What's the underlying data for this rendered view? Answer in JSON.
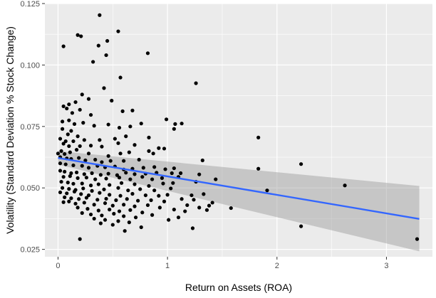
{
  "chart_data": {
    "type": "scatter",
    "xlabel": "Return on Assets (ROA)",
    "ylabel": "Volatility (Standard Deviation % Stock Change)",
    "xlim": [
      -0.12,
      3.42
    ],
    "ylim": [
      0.022,
      0.125
    ],
    "x_ticks": [
      0,
      1,
      2,
      3
    ],
    "x_tick_labels": [
      "0",
      "1",
      "2",
      "3"
    ],
    "y_ticks": [
      0.025,
      0.05,
      0.075,
      0.1,
      0.125
    ],
    "y_tick_labels": [
      "0.025",
      "0.050",
      "0.075",
      "0.100",
      "0.125"
    ],
    "grid": true,
    "legend": "none",
    "colors": {
      "panel": "#ebebeb",
      "grid": "#ffffff",
      "point": "#000000",
      "trend_line": "#3366ff",
      "ribbon": "#999999"
    },
    "trend_line": {
      "method": "linear",
      "x": [
        0,
        3.3
      ],
      "y": [
        0.0622,
        0.0374
      ],
      "ci_lower": [
        0.0595,
        0.0242
      ],
      "ci_upper": [
        0.065,
        0.0508
      ]
    },
    "points": [
      [
        0.38,
        0.1203
      ],
      [
        0.55,
        0.1137
      ],
      [
        0.18,
        0.1122
      ],
      [
        0.21,
        0.1117
      ],
      [
        0.45,
        0.1098
      ],
      [
        0.37,
        0.1079
      ],
      [
        0.05,
        0.1076
      ],
      [
        0.82,
        0.1048
      ],
      [
        0.44,
        0.104
      ],
      [
        0.32,
        0.1013
      ],
      [
        0.57,
        0.0949
      ],
      [
        1.26,
        0.0926
      ],
      [
        0.42,
        0.0906
      ],
      [
        0.22,
        0.088
      ],
      [
        0.28,
        0.0862
      ],
      [
        0.49,
        0.0855
      ],
      [
        0.16,
        0.0849
      ],
      [
        0.05,
        0.0832
      ],
      [
        0.1,
        0.084
      ],
      [
        0.08,
        0.0823
      ],
      [
        0.2,
        0.0818
      ],
      [
        0.59,
        0.0812
      ],
      [
        0.68,
        0.0815
      ],
      [
        0.13,
        0.0805
      ],
      [
        0.3,
        0.0797
      ],
      [
        0.04,
        0.077
      ],
      [
        0.1,
        0.0775
      ],
      [
        0.15,
        0.076
      ],
      [
        0.23,
        0.0765
      ],
      [
        0.33,
        0.0753
      ],
      [
        0.46,
        0.0758
      ],
      [
        0.56,
        0.0745
      ],
      [
        0.66,
        0.075
      ],
      [
        0.76,
        0.0762
      ],
      [
        0.99,
        0.0779
      ],
      [
        1.07,
        0.076
      ],
      [
        1.13,
        0.0762
      ],
      [
        1.06,
        0.074
      ],
      [
        0.04,
        0.074
      ],
      [
        0.12,
        0.0732
      ],
      [
        0.09,
        0.0718
      ],
      [
        0.18,
        0.071
      ],
      [
        0.02,
        0.07
      ],
      [
        0.07,
        0.069
      ],
      [
        0.14,
        0.069
      ],
      [
        0.24,
        0.0695
      ],
      [
        0.38,
        0.0695
      ],
      [
        0.52,
        0.07
      ],
      [
        0.62,
        0.071
      ],
      [
        0.83,
        0.0705
      ],
      [
        1.83,
        0.0705
      ],
      [
        0.05,
        0.068
      ],
      [
        0.1,
        0.067
      ],
      [
        0.2,
        0.067
      ],
      [
        0.3,
        0.0672
      ],
      [
        0.4,
        0.0668
      ],
      [
        0.55,
        0.0682
      ],
      [
        0.7,
        0.0675
      ],
      [
        0.92,
        0.0662
      ],
      [
        0.97,
        0.066
      ],
      [
        0.03,
        0.065
      ],
      [
        0.06,
        0.0638
      ],
      [
        0.11,
        0.0645
      ],
      [
        0.17,
        0.0655
      ],
      [
        0.28,
        0.064
      ],
      [
        0.46,
        0.063
      ],
      [
        0.57,
        0.064
      ],
      [
        0.65,
        0.0645
      ],
      [
        0.83,
        0.065
      ],
      [
        0.87,
        0.064
      ],
      [
        0.0,
        0.064
      ],
      [
        0.02,
        0.0625
      ],
      [
        0.08,
        0.062
      ],
      [
        0.12,
        0.0618
      ],
      [
        0.19,
        0.0622
      ],
      [
        0.25,
        0.0612
      ],
      [
        0.34,
        0.0615
      ],
      [
        0.4,
        0.0605
      ],
      [
        0.48,
        0.061
      ],
      [
        0.6,
        0.061
      ],
      [
        0.74,
        0.0615
      ],
      [
        1.32,
        0.0612
      ],
      [
        2.22,
        0.0597
      ],
      [
        0.02,
        0.06
      ],
      [
        0.07,
        0.0596
      ],
      [
        0.14,
        0.0592
      ],
      [
        0.22,
        0.059
      ],
      [
        0.28,
        0.0582
      ],
      [
        0.36,
        0.059
      ],
      [
        0.43,
        0.0584
      ],
      [
        0.52,
        0.0587
      ],
      [
        0.6,
        0.0575
      ],
      [
        0.68,
        0.0578
      ],
      [
        0.78,
        0.0582
      ],
      [
        0.88,
        0.0585
      ],
      [
        0.98,
        0.0576
      ],
      [
        1.06,
        0.058
      ],
      [
        1.83,
        0.0578
      ],
      [
        0.02,
        0.057
      ],
      [
        0.06,
        0.0566
      ],
      [
        0.12,
        0.056
      ],
      [
        0.17,
        0.0563
      ],
      [
        0.24,
        0.0556
      ],
      [
        0.31,
        0.056
      ],
      [
        0.39,
        0.0553
      ],
      [
        0.46,
        0.0558
      ],
      [
        0.54,
        0.0552
      ],
      [
        0.62,
        0.0562
      ],
      [
        0.7,
        0.0556
      ],
      [
        0.8,
        0.0558
      ],
      [
        0.9,
        0.0562
      ],
      [
        1.04,
        0.056
      ],
      [
        1.12,
        0.056
      ],
      [
        1.29,
        0.0555
      ],
      [
        0.05,
        0.0545
      ],
      [
        0.11,
        0.0548
      ],
      [
        0.18,
        0.054
      ],
      [
        0.26,
        0.0542
      ],
      [
        0.34,
        0.0535
      ],
      [
        0.44,
        0.0538
      ],
      [
        0.56,
        0.0542
      ],
      [
        0.66,
        0.0535
      ],
      [
        0.77,
        0.0545
      ],
      [
        0.86,
        0.0535
      ],
      [
        0.95,
        0.054
      ],
      [
        1.1,
        0.0545
      ],
      [
        1.44,
        0.0535
      ],
      [
        0.03,
        0.0525
      ],
      [
        0.09,
        0.0522
      ],
      [
        0.14,
        0.0517
      ],
      [
        0.22,
        0.0518
      ],
      [
        0.3,
        0.051
      ],
      [
        0.37,
        0.0515
      ],
      [
        0.47,
        0.0512
      ],
      [
        0.58,
        0.052
      ],
      [
        0.7,
        0.0515
      ],
      [
        0.83,
        0.0508
      ],
      [
        0.96,
        0.0518
      ],
      [
        1.05,
        0.052
      ],
      [
        1.26,
        0.0525
      ],
      [
        2.62,
        0.051
      ],
      [
        0.04,
        0.05
      ],
      [
        0.1,
        0.0496
      ],
      [
        0.16,
        0.0492
      ],
      [
        0.23,
        0.0498
      ],
      [
        0.31,
        0.0488
      ],
      [
        0.42,
        0.0494
      ],
      [
        0.55,
        0.05
      ],
      [
        0.64,
        0.049
      ],
      [
        0.75,
        0.0495
      ],
      [
        0.88,
        0.049
      ],
      [
        1.03,
        0.0498
      ],
      [
        1.91,
        0.049
      ],
      [
        0.02,
        0.0482
      ],
      [
        0.08,
        0.0478
      ],
      [
        0.15,
        0.0485
      ],
      [
        0.21,
        0.0475
      ],
      [
        0.28,
        0.047
      ],
      [
        0.38,
        0.048
      ],
      [
        0.47,
        0.0472
      ],
      [
        0.57,
        0.0468
      ],
      [
        0.68,
        0.0476
      ],
      [
        0.8,
        0.047
      ],
      [
        0.92,
        0.0468
      ],
      [
        1.0,
        0.0472
      ],
      [
        1.22,
        0.047
      ],
      [
        1.33,
        0.0475
      ],
      [
        0.06,
        0.0462
      ],
      [
        0.12,
        0.0458
      ],
      [
        0.19,
        0.0455
      ],
      [
        0.26,
        0.046
      ],
      [
        0.36,
        0.0452
      ],
      [
        0.44,
        0.0456
      ],
      [
        0.53,
        0.045
      ],
      [
        0.63,
        0.0455
      ],
      [
        0.73,
        0.0448
      ],
      [
        0.85,
        0.045
      ],
      [
        0.97,
        0.0445
      ],
      [
        1.13,
        0.0455
      ],
      [
        1.24,
        0.0452
      ],
      [
        0.05,
        0.0442
      ],
      [
        0.1,
        0.0445
      ],
      [
        0.16,
        0.0436
      ],
      [
        0.24,
        0.044
      ],
      [
        0.33,
        0.0432
      ],
      [
        0.43,
        0.0438
      ],
      [
        0.5,
        0.0428
      ],
      [
        0.6,
        0.0432
      ],
      [
        0.7,
        0.0425
      ],
      [
        0.82,
        0.043
      ],
      [
        0.93,
        0.042
      ],
      [
        1.18,
        0.043
      ],
      [
        1.29,
        0.042
      ],
      [
        1.38,
        0.0428
      ],
      [
        1.41,
        0.044
      ],
      [
        0.18,
        0.042
      ],
      [
        0.27,
        0.0415
      ],
      [
        0.37,
        0.0408
      ],
      [
        0.47,
        0.0412
      ],
      [
        0.56,
        0.0405
      ],
      [
        0.66,
        0.041
      ],
      [
        0.77,
        0.04
      ],
      [
        1.06,
        0.0412
      ],
      [
        1.16,
        0.0405
      ],
      [
        1.36,
        0.041
      ],
      [
        1.58,
        0.0418
      ],
      [
        0.22,
        0.0398
      ],
      [
        0.3,
        0.0392
      ],
      [
        0.4,
        0.0388
      ],
      [
        0.51,
        0.0395
      ],
      [
        0.6,
        0.0385
      ],
      [
        0.71,
        0.038
      ],
      [
        0.86,
        0.039
      ],
      [
        0.33,
        0.0375
      ],
      [
        0.43,
        0.037
      ],
      [
        0.55,
        0.0365
      ],
      [
        0.65,
        0.036
      ],
      [
        1.01,
        0.037
      ],
      [
        1.1,
        0.038
      ],
      [
        0.39,
        0.0356
      ],
      [
        0.5,
        0.035
      ],
      [
        0.76,
        0.034
      ],
      [
        1.23,
        0.0336
      ],
      [
        2.22,
        0.0344
      ],
      [
        0.61,
        0.0325
      ],
      [
        0.2,
        0.0292
      ],
      [
        3.28,
        0.0292
      ]
    ]
  }
}
